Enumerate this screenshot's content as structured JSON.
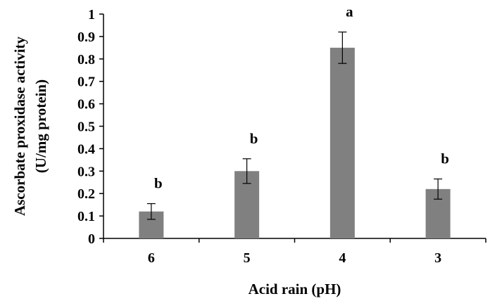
{
  "chart_data": {
    "type": "bar",
    "categories": [
      "6",
      "5",
      "4",
      "3"
    ],
    "values": [
      0.12,
      0.3,
      0.85,
      0.22
    ],
    "errors": [
      0.035,
      0.055,
      0.07,
      0.045
    ],
    "significance": [
      "b",
      "b",
      "a",
      "b"
    ],
    "xlabel": "Acid rain (pH)",
    "ylabel_line1": "Ascorbate proxidase  activity",
    "ylabel_line2": "(U/mg protein)",
    "ylim": [
      0,
      1
    ],
    "yticks": [
      "0",
      "0.1",
      "0.2",
      "0.3",
      "0.4",
      "0.5",
      "0.6",
      "0.7",
      "0.8",
      "0.9",
      "1"
    ],
    "grid": false,
    "bar_color": "#808080"
  }
}
